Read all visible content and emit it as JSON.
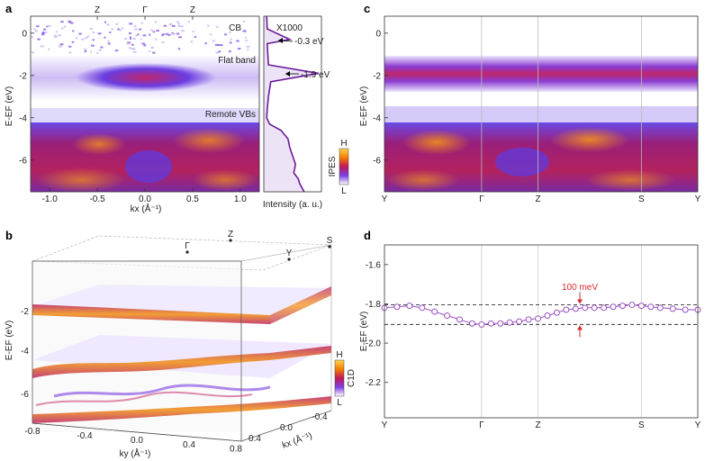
{
  "panels": {
    "a": {
      "label": "a",
      "top_ticks": [
        "Z",
        "Γ",
        "Z"
      ],
      "x_ticks": [
        "-1.0",
        "-0.5",
        "0.0",
        "0.5",
        "1.0"
      ],
      "y_ticks": [
        "0",
        "-2",
        "-4",
        "-6"
      ],
      "xlabel": "kx (Å⁻¹)",
      "ylabel": "E-EF (eV)",
      "annotations": [
        "CB",
        "Flat band",
        "Remote VBs"
      ],
      "edc": {
        "xlabel": "Intensity (a. u.)",
        "scale_note": "X1000",
        "peak_labels": [
          "-0.3 eV",
          "-1.9 eV"
        ],
        "line_color": "#6a1b9a"
      }
    },
    "b": {
      "label": "b",
      "top_ticks": [
        "Γ",
        "Z",
        "Y",
        "S"
      ],
      "x_ticks": [
        "-0.8",
        "-0.4",
        "0.0",
        "0.4",
        "0.8"
      ],
      "xlabel": "ky (Å⁻¹)",
      "depth_ticks": [
        "0.4",
        "0.0",
        "-0.4"
      ],
      "depth_label": "kx (Å⁻¹)",
      "y_ticks": [
        "-2",
        "-4",
        "-6"
      ],
      "ylabel": "E-EF (eV)",
      "colorbar": {
        "high": "H",
        "low": "L",
        "label": "C1D"
      }
    },
    "c": {
      "label": "c",
      "x_ticks": [
        "Y",
        "Γ",
        "Z",
        "S",
        "Y"
      ],
      "y_ticks": [
        "0",
        "-2",
        "-4",
        "-6"
      ],
      "ylabel": "E-EF (eV)",
      "colorbar": {
        "high": "H",
        "low": "L",
        "label": "IPES"
      }
    },
    "d": {
      "label": "d",
      "x_ticks": [
        "Y",
        "Γ",
        "Z",
        "S",
        "Y"
      ],
      "y_ticks": [
        "-1.6",
        "-1.8",
        "-2.0",
        "-2.2"
      ],
      "ylabel": "E-EF (eV)",
      "annotation": "100 meV",
      "marker_color": "#9b4fc4",
      "annotation_color": "#d62728"
    }
  },
  "chart_data": [
    {
      "type": "heatmap",
      "panel": "a",
      "xlabel": "kx (Å⁻¹)",
      "ylabel": "E-EF (eV)",
      "xlim": [
        -1.2,
        1.2
      ],
      "ylim": [
        -7.5,
        0.8
      ],
      "features": [
        {
          "name": "CB",
          "energy": -0.3
        },
        {
          "name": "Flat band",
          "energy": -1.9
        },
        {
          "name": "Remote VBs",
          "energy_range": [
            -7.5,
            -4.2
          ]
        }
      ]
    },
    {
      "type": "line",
      "panel": "a-edc",
      "xlabel": "Intensity (a. u.)",
      "peaks": [
        {
          "energy": -0.3,
          "label": "-0.3 eV"
        },
        {
          "energy": -1.9,
          "label": "-1.9 eV"
        }
      ],
      "x": [
        0.05,
        0.06,
        0.45,
        0.06,
        0.08,
        0.95,
        0.12,
        0.08,
        0.06,
        0.05,
        0.1,
        0.3,
        0.42,
        0.45,
        0.5,
        0.55,
        0.52,
        0.6,
        0.62,
        0.66,
        0.7
      ],
      "y": [
        0.8,
        0.2,
        -0.3,
        -0.5,
        -1.5,
        -1.9,
        -2.3,
        -3.0,
        -3.6,
        -4.0,
        -4.3,
        -4.6,
        -5.0,
        -5.4,
        -5.8,
        -6.2,
        -6.6,
        -6.9,
        -7.1,
        -7.3,
        -7.5
      ]
    },
    {
      "type": "heatmap",
      "panel": "c",
      "ylabel": "E-EF (eV)",
      "categories": [
        "Y",
        "Γ",
        "Z",
        "S",
        "Y"
      ],
      "ylim": [
        -7.5,
        0.8
      ]
    },
    {
      "type": "scatter",
      "panel": "d",
      "ylabel": "E-EF (eV)",
      "ylim": [
        -2.38,
        -1.5
      ],
      "categories": [
        "Y",
        "Γ",
        "Z",
        "S",
        "Y"
      ],
      "x": [
        0,
        0.04,
        0.08,
        0.12,
        0.16,
        0.2,
        0.24,
        0.28,
        0.31,
        0.34,
        0.37,
        0.4,
        0.43,
        0.46,
        0.49,
        0.52,
        0.55,
        0.58,
        0.61,
        0.64,
        0.67,
        0.7,
        0.73,
        0.76,
        0.79,
        0.82,
        0.85,
        0.88,
        0.92,
        0.96,
        1.0
      ],
      "y": [
        -1.82,
        -1.815,
        -1.81,
        -1.82,
        -1.84,
        -1.86,
        -1.88,
        -1.9,
        -1.905,
        -1.9,
        -1.9,
        -1.895,
        -1.89,
        -1.88,
        -1.875,
        -1.86,
        -1.845,
        -1.83,
        -1.825,
        -1.82,
        -1.82,
        -1.82,
        -1.815,
        -1.81,
        -1.805,
        -1.81,
        -1.815,
        -1.82,
        -1.825,
        -1.83,
        -1.83
      ],
      "reference_lines": [
        -1.805,
        -1.905
      ],
      "annotation": {
        "text": "100 meV",
        "delta_meV": 100
      }
    }
  ]
}
